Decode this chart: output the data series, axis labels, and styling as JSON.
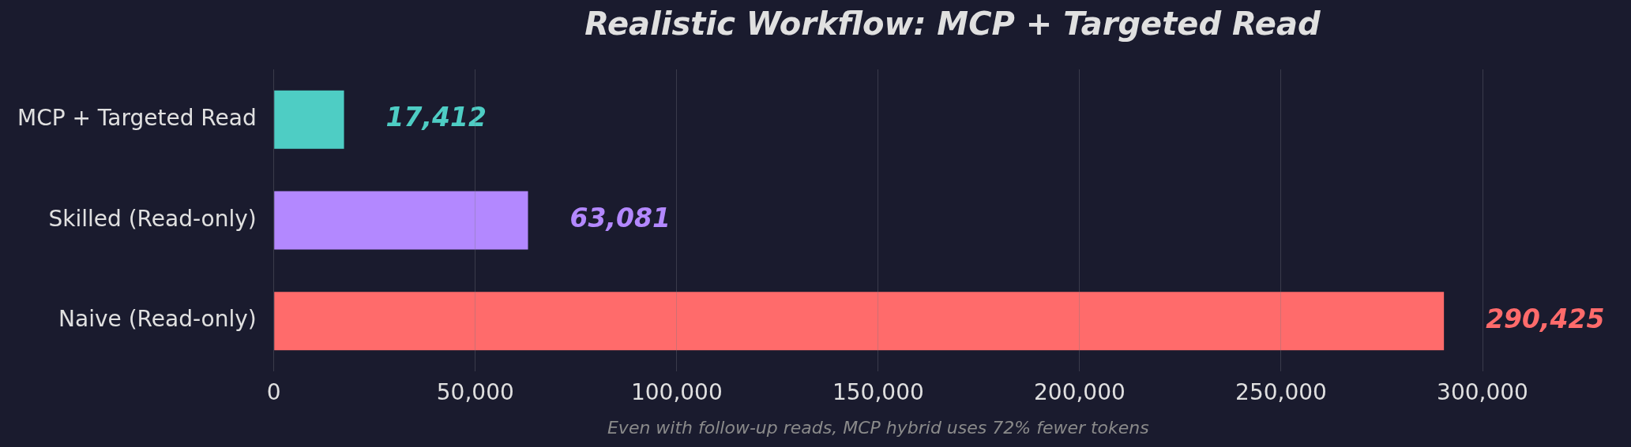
{
  "chart_data": {
    "type": "bar",
    "orientation": "horizontal",
    "title": "Realistic Workflow: MCP + Targeted Read",
    "xlabel": "Even with follow-up reads, MCP hybrid uses 72% fewer tokens",
    "categories": [
      "MCP + Targeted Read",
      "Skilled (Read-only)",
      "Naive (Read-only)"
    ],
    "values": [
      17412,
      63081,
      290425
    ],
    "colors": [
      "#4ecdc4",
      "#b388ff",
      "#ff6b6b"
    ],
    "xlim": [
      0,
      300000
    ],
    "xticks": [
      {
        "value": 0,
        "label": "0"
      },
      {
        "value": 50000,
        "label": "50,000"
      },
      {
        "value": 100000,
        "label": "100,000"
      },
      {
        "value": 150000,
        "label": "150,000"
      },
      {
        "value": 200000,
        "label": "200,000"
      },
      {
        "value": 250000,
        "label": "250,000"
      },
      {
        "value": 300000,
        "label": "300,000"
      }
    ],
    "value_labels": [
      "17,412",
      "63,081",
      "290,425"
    ],
    "grid": "x"
  }
}
